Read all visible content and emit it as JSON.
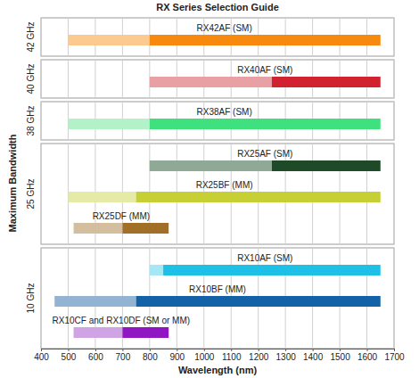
{
  "chart_data": {
    "type": "bar",
    "orientation": "horizontal",
    "title": "RX Series Selection Guide",
    "x_label": "Wavelength (nm)",
    "y_label": "Maximum Bandwidth",
    "xlim": [
      400,
      1700
    ],
    "xticks": [
      400,
      500,
      600,
      700,
      800,
      900,
      1000,
      1100,
      1200,
      1300,
      1400,
      1500,
      1600,
      1700
    ],
    "grid": true,
    "panels": [
      {
        "label": "42 GHz",
        "series": [
          {
            "name": "RX42AF (SM)",
            "colors": [
              "#fcc98e",
              "#f7890f"
            ],
            "values": [
              [
                500,
                800
              ],
              [
                800,
                1650
              ]
            ]
          }
        ]
      },
      {
        "label": "40 GHz",
        "series": [
          {
            "name": "RX40AF (SM)",
            "colors": [
              "#e8a0a5",
              "#d0232f"
            ],
            "values": [
              [
                800,
                1250
              ],
              [
                1250,
                1650
              ]
            ]
          }
        ]
      },
      {
        "label": "38 GHz",
        "series": [
          {
            "name": "RX38AF (SM)",
            "colors": [
              "#b3f2c8",
              "#3fe07e"
            ],
            "values": [
              [
                500,
                800
              ],
              [
                800,
                1650
              ]
            ]
          }
        ]
      },
      {
        "label": "25 GHz",
        "series": [
          {
            "name": "RX25AF (SM)",
            "colors": [
              "#8fa996",
              "#1f4a28"
            ],
            "values": [
              [
                800,
                1250
              ],
              [
                1250,
                1650
              ]
            ]
          },
          {
            "name": "RX25BF (MM)",
            "colors": [
              "#e5eba6",
              "#c6cf33"
            ],
            "values": [
              [
                500,
                750
              ],
              [
                750,
                1650
              ]
            ]
          },
          {
            "name": "RX25DF (MM)",
            "colors": [
              "#d3bfa0",
              "#a16f28"
            ],
            "values": [
              [
                520,
                700
              ],
              [
                700,
                870
              ]
            ]
          }
        ]
      },
      {
        "label": "10 GHz",
        "series": [
          {
            "name": "RX10AF (SM)",
            "colors": [
              "#a5e7f5",
              "#1ec0e6"
            ],
            "values": [
              [
                800,
                850
              ],
              [
                850,
                1650
              ]
            ]
          },
          {
            "name": "RX10BF (MM)",
            "colors": [
              "#93b3d3",
              "#1361a6"
            ],
            "values": [
              [
                450,
                750
              ],
              [
                750,
                1650
              ]
            ]
          },
          {
            "name": "RX10CF and RX10DF (SM or MM)",
            "colors": [
              "#cfa3e4",
              "#9016c4"
            ],
            "values": [
              [
                520,
                700
              ],
              [
                700,
                870
              ]
            ]
          }
        ]
      }
    ]
  }
}
